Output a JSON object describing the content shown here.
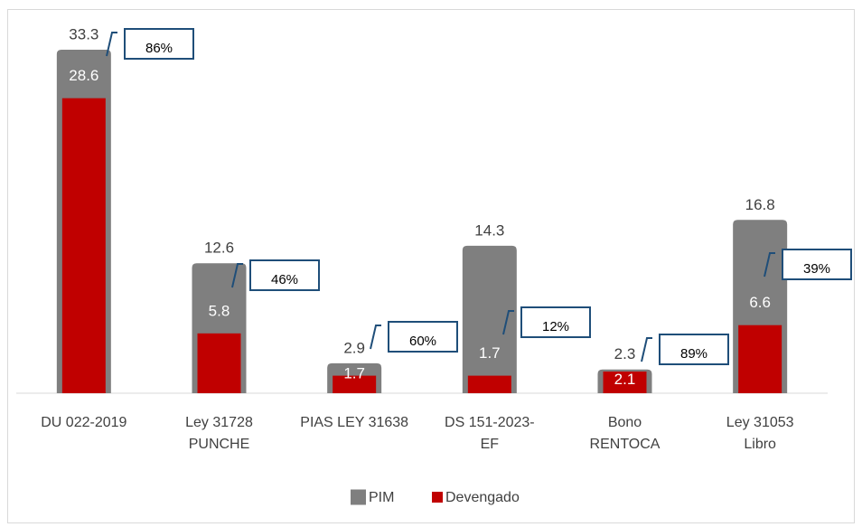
{
  "chart_data": {
    "type": "bar",
    "categories": [
      [
        "DU 022-2019"
      ],
      [
        "Ley 31728",
        "PUNCHE"
      ],
      [
        "PIAS LEY 31638"
      ],
      [
        "DS 151-2023-",
        "EF"
      ],
      [
        "Bono",
        "RENTOCA"
      ],
      [
        "Ley 31053",
        "Libro"
      ]
    ],
    "series": [
      {
        "name": "PIM",
        "color": "#7f7f7f",
        "values": [
          33.3,
          12.6,
          2.9,
          14.3,
          2.3,
          16.8
        ]
      },
      {
        "name": "Devengado",
        "color": "#c00000",
        "values": [
          28.6,
          5.8,
          1.7,
          1.7,
          2.1,
          6.6
        ]
      }
    ],
    "percent_labels": [
      "86%",
      "46%",
      "60%",
      "12%",
      "89%",
      "39%"
    ],
    "legend": "bottom"
  }
}
